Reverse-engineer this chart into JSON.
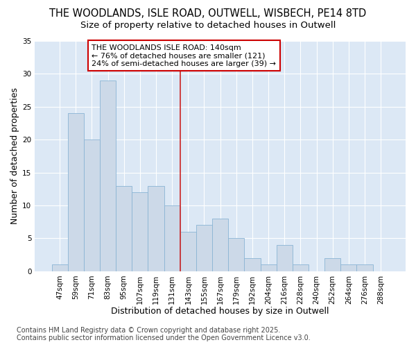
{
  "title_line1": "THE WOODLANDS, ISLE ROAD, OUTWELL, WISBECH, PE14 8TD",
  "title_line2": "Size of property relative to detached houses in Outwell",
  "xlabel": "Distribution of detached houses by size in Outwell",
  "ylabel": "Number of detached properties",
  "categories": [
    "47sqm",
    "59sqm",
    "71sqm",
    "83sqm",
    "95sqm",
    "107sqm",
    "119sqm",
    "131sqm",
    "143sqm",
    "155sqm",
    "167sqm",
    "179sqm",
    "192sqm",
    "204sqm",
    "216sqm",
    "228sqm",
    "240sqm",
    "252sqm",
    "264sqm",
    "276sqm",
    "288sqm"
  ],
  "values": [
    1,
    24,
    20,
    29,
    13,
    12,
    13,
    10,
    6,
    7,
    8,
    5,
    2,
    1,
    4,
    1,
    0,
    2,
    1,
    1,
    0
  ],
  "bar_color": "#ccd9e8",
  "bar_edge_color": "#8ab4d4",
  "vline_x_index": 8,
  "vline_color": "#cc2222",
  "annotation_box_text": "THE WOODLANDS ISLE ROAD: 140sqm\n← 76% of detached houses are smaller (121)\n24% of semi-detached houses are larger (39) →",
  "annotation_box_color": "#ffffff",
  "annotation_box_edge_color": "#cc0000",
  "ylim": [
    0,
    35
  ],
  "yticks": [
    0,
    5,
    10,
    15,
    20,
    25,
    30,
    35
  ],
  "axes_background_color": "#dce8f5",
  "fig_background_color": "#ffffff",
  "grid_color": "#ffffff",
  "footer_text": "Contains HM Land Registry data © Crown copyright and database right 2025.\nContains public sector information licensed under the Open Government Licence v3.0.",
  "title_fontsize": 10.5,
  "subtitle_fontsize": 9.5,
  "axis_label_fontsize": 9,
  "tick_fontsize": 7.5,
  "annotation_fontsize": 8,
  "footer_fontsize": 7
}
